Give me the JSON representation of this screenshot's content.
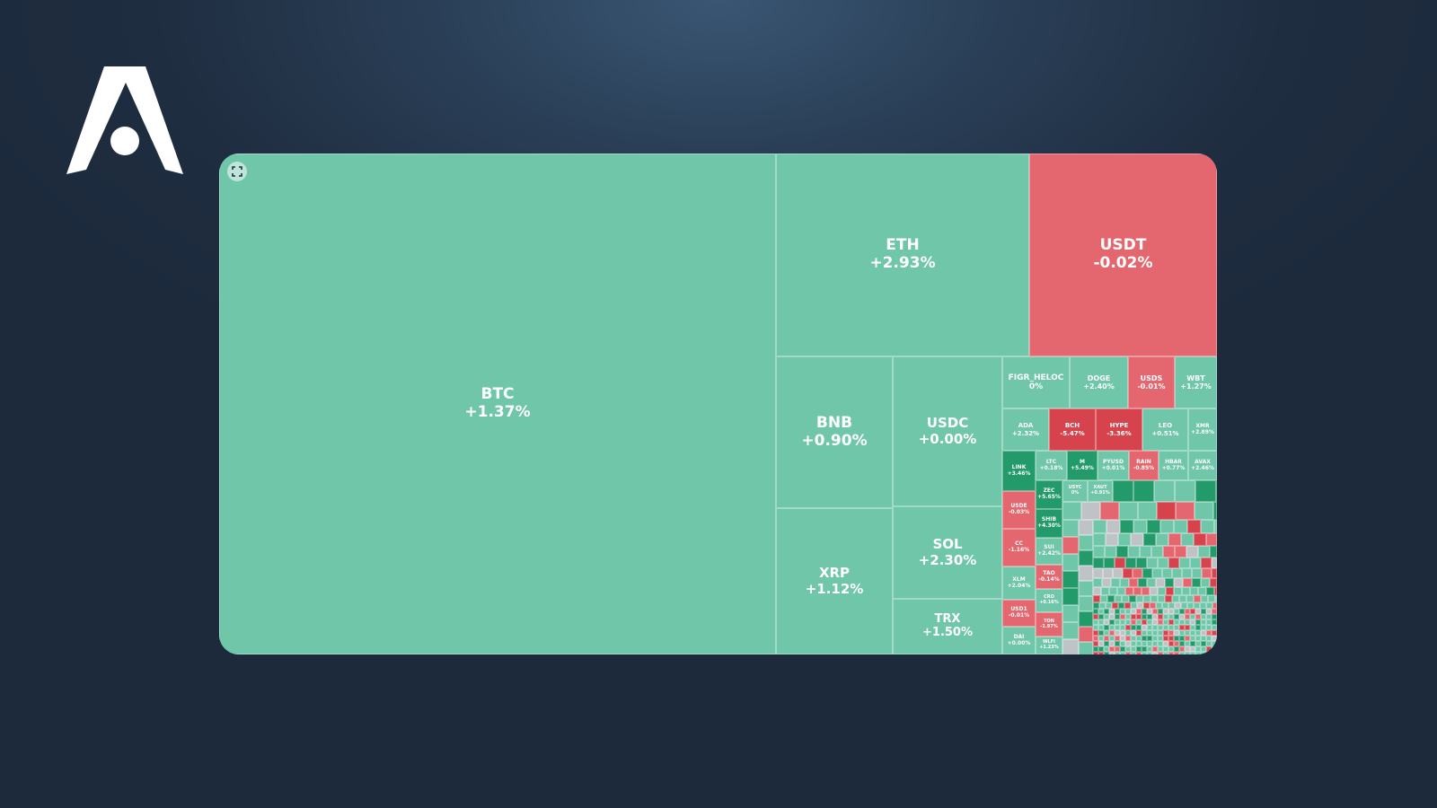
{
  "colors": {
    "up": "#6fc6a8",
    "up_strong": "#239a6a",
    "down": "#e4676f",
    "down_strong": "#d6434d",
    "flat": "#bfc3c6",
    "background": "#1f2d40"
  },
  "logo": {
    "icon": "stylized-a-logo"
  },
  "toolbar": {
    "expand_icon": "expand-icon"
  },
  "chart_data": {
    "type": "treemap",
    "metric": "24h change (%)",
    "items": [
      {
        "symbol": "BTC",
        "change": "+1.37%",
        "value": 1.37,
        "color": "up"
      },
      {
        "symbol": "ETH",
        "change": "+2.93%",
        "value": 2.93,
        "color": "up"
      },
      {
        "symbol": "USDT",
        "change": "-0.02%",
        "value": -0.02,
        "color": "down"
      },
      {
        "symbol": "BNB",
        "change": "+0.90%",
        "value": 0.9,
        "color": "up"
      },
      {
        "symbol": "USDC",
        "change": "+0.00%",
        "value": 0.0,
        "color": "up"
      },
      {
        "symbol": "XRP",
        "change": "+1.12%",
        "value": 1.12,
        "color": "up"
      },
      {
        "symbol": "SOL",
        "change": "+2.30%",
        "value": 2.3,
        "color": "up"
      },
      {
        "symbol": "TRX",
        "change": "+1.50%",
        "value": 1.5,
        "color": "up"
      },
      {
        "symbol": "FIGR_HELOC",
        "change": "0%",
        "value": 0,
        "color": "up"
      },
      {
        "symbol": "DOGE",
        "change": "+2.40%",
        "value": 2.4,
        "color": "up"
      },
      {
        "symbol": "USDS",
        "change": "-0.01%",
        "value": -0.01,
        "color": "down"
      },
      {
        "symbol": "WBT",
        "change": "+1.27%",
        "value": 1.27,
        "color": "up"
      },
      {
        "symbol": "ADA",
        "change": "+2.32%",
        "value": 2.32,
        "color": "up"
      },
      {
        "symbol": "BCH",
        "change": "-5.47%",
        "value": -5.47,
        "color": "down_strong"
      },
      {
        "symbol": "HYPE",
        "change": "-3.36%",
        "value": -3.36,
        "color": "down_strong"
      },
      {
        "symbol": "LEO",
        "change": "+0.51%",
        "value": 0.51,
        "color": "up"
      },
      {
        "symbol": "XMR",
        "change": "+2.89%",
        "value": 2.89,
        "color": "up"
      },
      {
        "symbol": "LINK",
        "change": "+3.46%",
        "value": 3.46,
        "color": "up_strong"
      },
      {
        "symbol": "LTC",
        "change": "+0.18%",
        "value": 0.18,
        "color": "up"
      },
      {
        "symbol": "M",
        "change": "+5.49%",
        "value": 5.49,
        "color": "up_strong"
      },
      {
        "symbol": "PYUSD",
        "change": "+0.01%",
        "value": 0.01,
        "color": "up"
      },
      {
        "symbol": "RAIN",
        "change": "-0.85%",
        "value": -0.85,
        "color": "down"
      },
      {
        "symbol": "HBAR",
        "change": "+0.77%",
        "value": 0.77,
        "color": "up"
      },
      {
        "symbol": "AVAX",
        "change": "+2.46%",
        "value": 2.46,
        "color": "up"
      },
      {
        "symbol": "USDE",
        "change": "-0.03%",
        "value": -0.03,
        "color": "down"
      },
      {
        "symbol": "ZEC",
        "change": "+5.65%",
        "value": 5.65,
        "color": "up_strong"
      },
      {
        "symbol": "USYC",
        "change": "0%",
        "value": 0,
        "color": "up"
      },
      {
        "symbol": "XAUT",
        "change": "+0.91%",
        "value": 0.91,
        "color": "up"
      },
      {
        "symbol": "SHIB",
        "change": "+4.30%",
        "value": 4.3,
        "color": "up_strong"
      },
      {
        "symbol": "CC",
        "change": "-1.16%",
        "value": -1.16,
        "color": "down"
      },
      {
        "symbol": "SUI",
        "change": "+2.42%",
        "value": 2.42,
        "color": "up"
      },
      {
        "symbol": "TAO",
        "change": "-0.14%",
        "value": -0.14,
        "color": "down"
      },
      {
        "symbol": "XLM",
        "change": "+2.04%",
        "value": 2.04,
        "color": "up"
      },
      {
        "symbol": "CRO",
        "change": "+0.16%",
        "value": 0.16,
        "color": "up"
      },
      {
        "symbol": "USD1",
        "change": "-0.01%",
        "value": -0.01,
        "color": "down"
      },
      {
        "symbol": "TON",
        "change": "-1.97%",
        "value": -1.97,
        "color": "down"
      },
      {
        "symbol": "DAI",
        "change": "+0.00%",
        "value": 0.0,
        "color": "up"
      },
      {
        "symbol": "WLFI",
        "change": "+1.23%",
        "value": 1.23,
        "color": "up"
      }
    ]
  }
}
